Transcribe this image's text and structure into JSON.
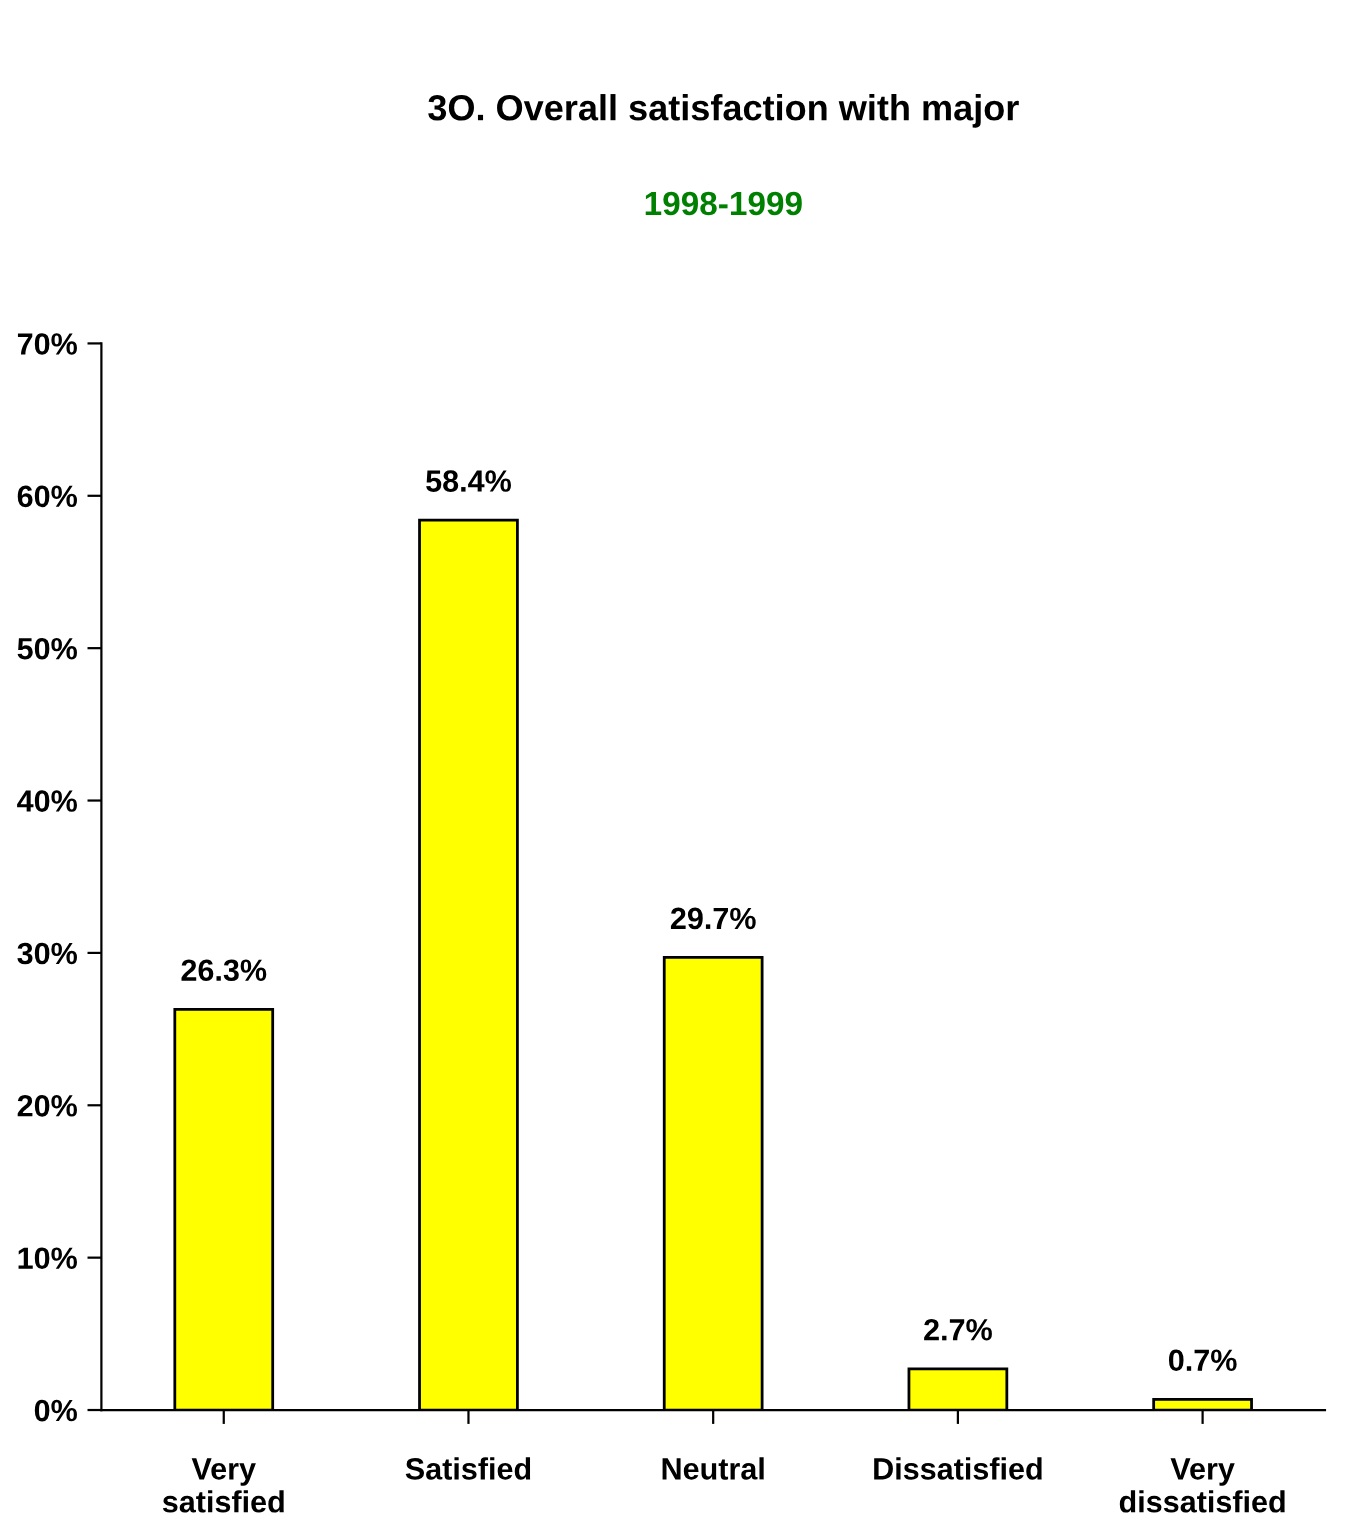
{
  "chart_data": {
    "type": "bar",
    "title": "3O. Overall satisfaction with major",
    "subtitle": "1998-1999",
    "categories": [
      "Very\nsatisfied",
      "Satisfied",
      "Neutral",
      "Dissatisfied",
      "Very\ndissatisfied"
    ],
    "values": [
      26.3,
      58.4,
      29.7,
      2.7,
      0.7
    ],
    "value_labels": [
      "26.3%",
      "58.4%",
      "29.7%",
      "2.7%",
      "0.7%"
    ],
    "color": "#ffff00",
    "ylim": [
      0,
      70
    ],
    "yticks": [
      {
        "value": 0,
        "label": "0%"
      },
      {
        "value": 10,
        "label": "10%"
      },
      {
        "value": 20,
        "label": "20%"
      },
      {
        "value": 30,
        "label": "30%"
      },
      {
        "value": 40,
        "label": "40%"
      },
      {
        "value": 50,
        "label": "50%"
      },
      {
        "value": 60,
        "label": "60%"
      },
      {
        "value": 70,
        "label": "70%"
      }
    ],
    "grid": false,
    "legend": false
  }
}
